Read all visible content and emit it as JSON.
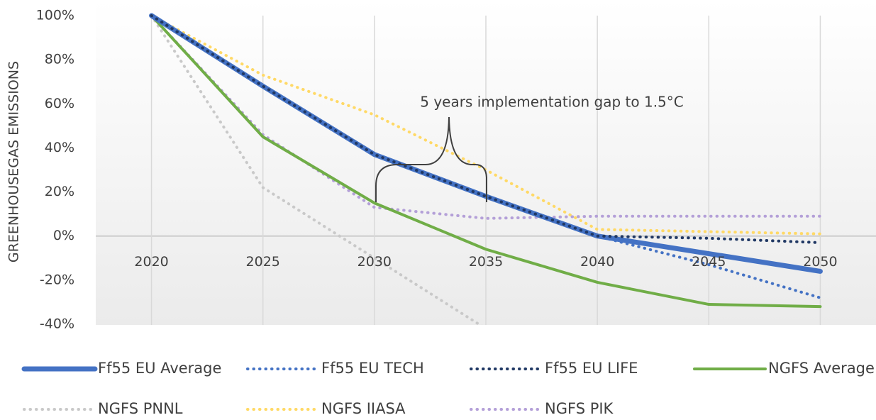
{
  "chart_data": {
    "type": "line",
    "y_axis_label": "GREENHOUSEGAS EMISSIONS",
    "annotation": "5 years implementation gap to 1.5°C",
    "x": [
      2020,
      2025,
      2030,
      2035,
      2040,
      2045,
      2050
    ],
    "xlim": [
      2017.5,
      2052.5
    ],
    "xticks": [
      2020,
      2025,
      2030,
      2035,
      2040,
      2045,
      2050
    ],
    "ylim": [
      -40,
      100
    ],
    "yticks": [
      {
        "value": -40,
        "label": "-40%"
      },
      {
        "value": -20,
        "label": "-20%"
      },
      {
        "value": 0,
        "label": "0%"
      },
      {
        "value": 20,
        "label": "20%"
      },
      {
        "value": 40,
        "label": "40%"
      },
      {
        "value": 60,
        "label": "60%"
      },
      {
        "value": 80,
        "label": "80%"
      },
      {
        "value": 100,
        "label": "100%"
      }
    ],
    "grid": true,
    "series": [
      {
        "name": "Ff55 EU Average",
        "color": "#4472c4",
        "style": "solid",
        "values": [
          100,
          68,
          37,
          18,
          0,
          -8,
          -16
        ]
      },
      {
        "name": "Ff55 EU TECH",
        "color": "#4472c4",
        "style": "dotted",
        "values": [
          100,
          68,
          37,
          18,
          0,
          -13,
          -28
        ]
      },
      {
        "name": "Ff55 EU LIFE",
        "color": "#203864",
        "style": "dotted",
        "values": [
          100,
          68,
          37,
          18,
          0,
          -1,
          -3
        ]
      },
      {
        "name": "NGFS Average",
        "color": "#70ad47",
        "style": "solid",
        "values": [
          100,
          45,
          15,
          -6,
          -21,
          -31,
          -32
        ]
      },
      {
        "name": "NGFS PNNL",
        "color": "#c9c9c9",
        "style": "dotted",
        "values": [
          100,
          22,
          -10,
          -42,
          null,
          null,
          null
        ]
      },
      {
        "name": "NGFS IIASA",
        "color": "#ffd966",
        "style": "dotted",
        "values": [
          100,
          73,
          55,
          30,
          3,
          2,
          1
        ]
      },
      {
        "name": "NGFS PIK",
        "color": "#b4a0d8",
        "style": "dotted",
        "values": [
          100,
          46,
          13,
          8,
          9,
          9,
          9
        ]
      }
    ]
  }
}
